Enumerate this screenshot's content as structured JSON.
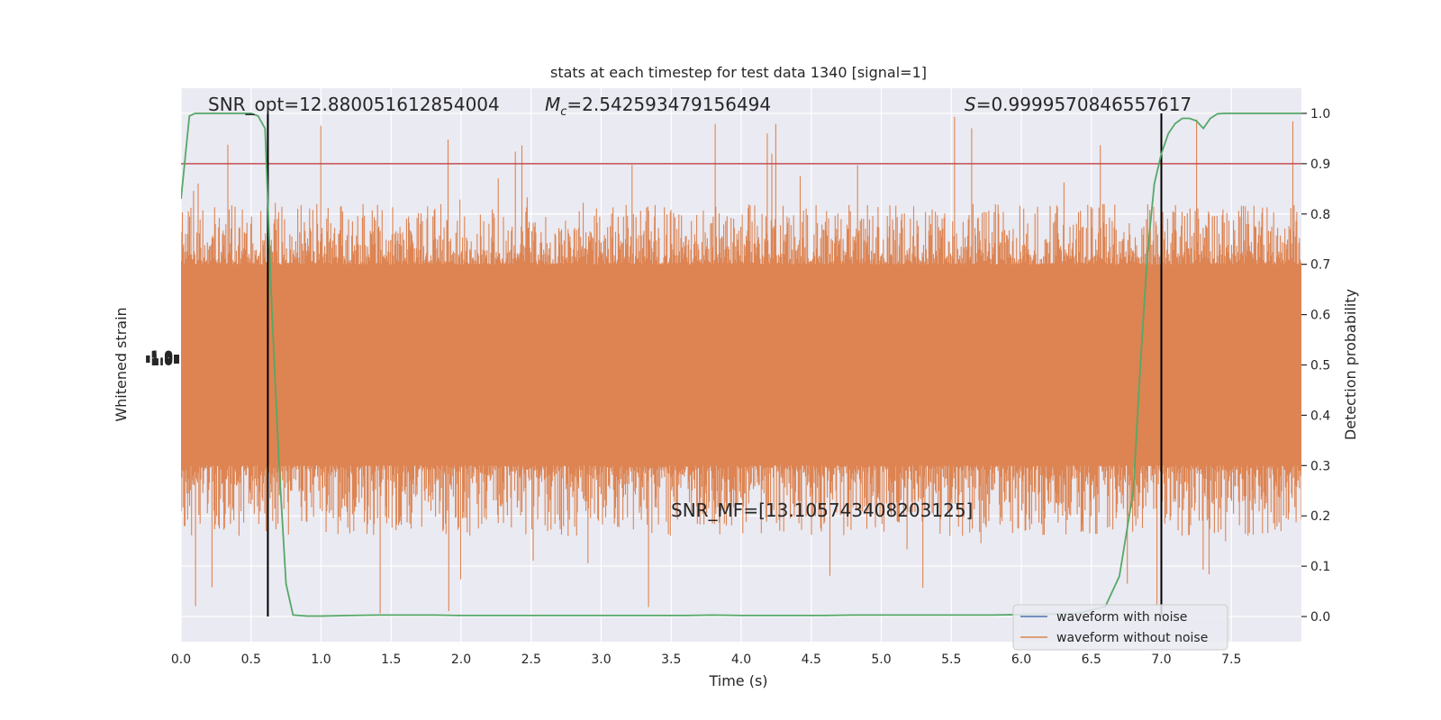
{
  "chart_data": {
    "type": "line",
    "title": "stats at each timestep for test data 1340 [signal=1]",
    "xlabel": "Time (s)",
    "ylabel_left": "Whitened strain",
    "ylabel_right": "Detection probability",
    "xlim": [
      0.0,
      8.0
    ],
    "ylim_right": [
      -0.05,
      1.05
    ],
    "x_ticks": [
      "0.0",
      "0.5",
      "1.0",
      "1.5",
      "2.0",
      "2.5",
      "3.0",
      "3.5",
      "4.0",
      "4.5",
      "5.0",
      "5.5",
      "6.0",
      "6.5",
      "7.0",
      "7.5"
    ],
    "x_tick_values": [
      0.0,
      0.5,
      1.0,
      1.5,
      2.0,
      2.5,
      3.0,
      3.5,
      4.0,
      4.5,
      5.0,
      5.5,
      6.0,
      6.5,
      7.0,
      7.5
    ],
    "y_ticks_right": [
      "0.0",
      "0.1",
      "0.2",
      "0.3",
      "0.4",
      "0.5",
      "0.6",
      "0.7",
      "0.8",
      "0.9",
      "1.0"
    ],
    "y_tick_values_right": [
      0.0,
      0.1,
      0.2,
      0.3,
      0.4,
      0.5,
      0.6,
      0.7,
      0.8,
      0.9,
      1.0
    ],
    "left_axis_tick_labels_overlapping": "-1.0",
    "threshold": 0.9,
    "vertical_lines_x": [
      0.62,
      7.0
    ],
    "annotations": {
      "snr_opt": "SNR_opt=12.880051612854004",
      "mc_symbol": "M",
      "mc_sub": "c",
      "mc_value": "=2.542593479156494",
      "s_symbol": "S",
      "s_value": "=0.9999570846557617",
      "snr_mf": "SNR_MF=[13.105743408203125]"
    },
    "legend": {
      "placement": "lower-right",
      "entries": [
        "waveform with noise",
        "waveform without noise"
      ]
    },
    "series": [
      {
        "name": "waveform without noise",
        "color": "#dd8452",
        "x_range": [
          0.0,
          8.0
        ],
        "band_center": 0.5,
        "band_core": [
          0.3,
          0.7
        ],
        "spike_max": 1.0,
        "spike_min": 0.0
      },
      {
        "name": "waveform with noise",
        "color": "#4c72b0"
      },
      {
        "name": "detection probability",
        "color": "#55a868",
        "x": [
          0.0,
          0.06,
          0.1,
          0.2,
          0.3,
          0.4,
          0.5,
          0.55,
          0.6,
          0.65,
          0.7,
          0.75,
          0.8,
          0.9,
          1.0,
          1.2,
          1.4,
          1.6,
          1.8,
          2.0,
          2.2,
          2.4,
          2.6,
          2.8,
          3.0,
          3.2,
          3.4,
          3.6,
          3.8,
          4.0,
          4.2,
          4.4,
          4.6,
          4.8,
          5.0,
          5.2,
          5.4,
          5.6,
          5.8,
          6.0,
          6.2,
          6.4,
          6.6,
          6.7,
          6.8,
          6.85,
          6.9,
          6.95,
          7.0,
          7.05,
          7.1,
          7.15,
          7.2,
          7.25,
          7.3,
          7.35,
          7.4,
          7.45,
          7.5,
          7.6,
          7.8,
          8.0
        ],
        "y": [
          0.83,
          0.995,
          1.0,
          1.0,
          1.0,
          1.0,
          1.0,
          0.995,
          0.97,
          0.6,
          0.3,
          0.065,
          0.003,
          0.001,
          0.001,
          0.002,
          0.003,
          0.003,
          0.003,
          0.002,
          0.002,
          0.002,
          0.002,
          0.002,
          0.002,
          0.002,
          0.002,
          0.002,
          0.003,
          0.002,
          0.002,
          0.002,
          0.002,
          0.003,
          0.003,
          0.003,
          0.003,
          0.003,
          0.003,
          0.004,
          0.005,
          0.006,
          0.02,
          0.08,
          0.25,
          0.5,
          0.72,
          0.86,
          0.92,
          0.96,
          0.98,
          0.99,
          0.99,
          0.985,
          0.97,
          0.99,
          0.999,
          1.0,
          1.0,
          1.0,
          1.0,
          1.0
        ]
      }
    ]
  }
}
